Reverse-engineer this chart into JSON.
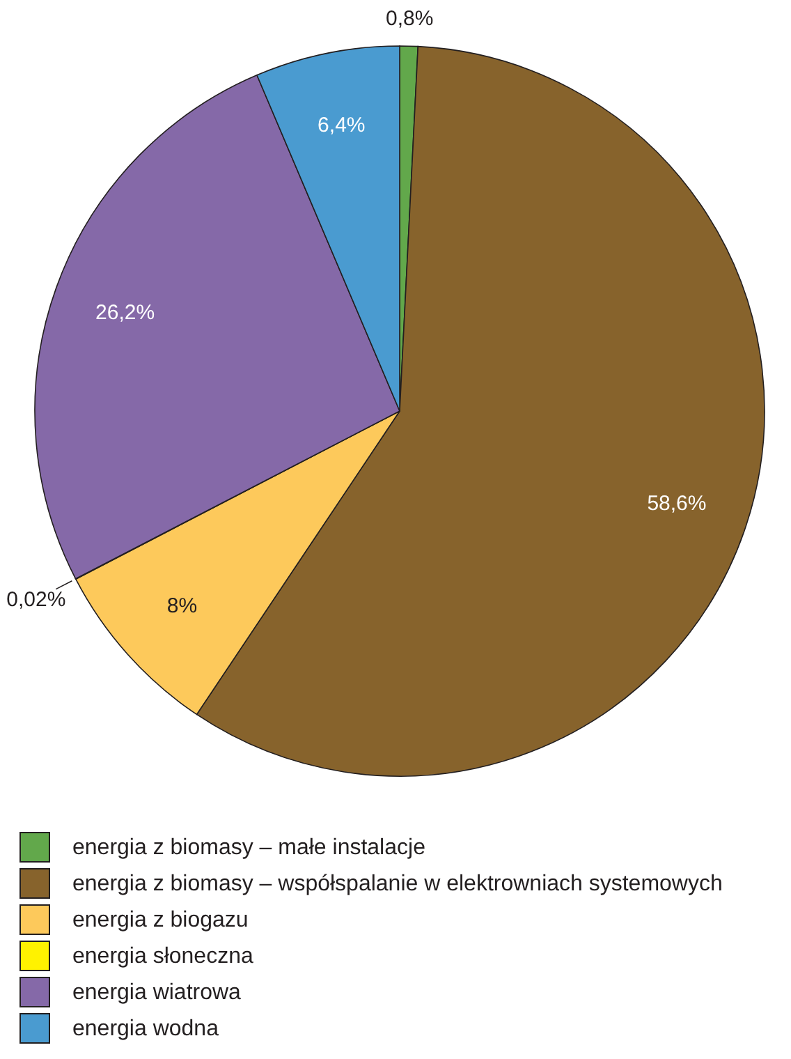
{
  "chart_data": {
    "type": "pie",
    "categories": [
      "energia z biomasy – małe instalacje",
      "energia z biomasy – współspalanie w elektrowniach systemowych",
      "energia z biogazu",
      "energia słoneczna",
      "energia wiatrowa",
      "energia wodna"
    ],
    "values": [
      0.8,
      58.6,
      8,
      0.02,
      26.2,
      6.4
    ],
    "colors": [
      "#62a84b",
      "#87632c",
      "#fdc95b",
      "#fff200",
      "#8569a8",
      "#4a9bd0"
    ],
    "value_labels": [
      "0,8%",
      "58,6%",
      "8%",
      "0,02%",
      "26,2%",
      "6,4%"
    ],
    "legend": "bottom left"
  }
}
